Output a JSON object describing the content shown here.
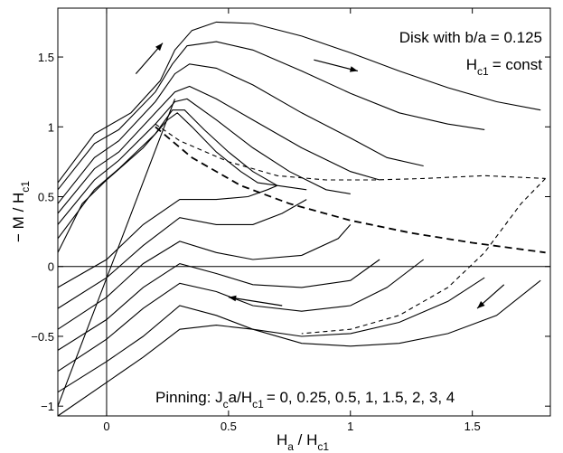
{
  "chart_data": {
    "type": "line",
    "xlim": [
      -0.2,
      1.82
    ],
    "ylim": [
      -1.07,
      1.85
    ],
    "xticks": [
      {
        "value": 0,
        "label": "0"
      },
      {
        "value": 0.5,
        "label": "0.5"
      },
      {
        "value": 1,
        "label": "1"
      },
      {
        "value": 1.5,
        "label": "1.5"
      }
    ],
    "yticks": [
      {
        "value": -1,
        "label": "−1"
      },
      {
        "value": -0.5,
        "label": "−0.5"
      },
      {
        "value": 0,
        "label": "0"
      },
      {
        "value": 0.5,
        "label": "0.5"
      },
      {
        "value": 1,
        "label": "1"
      },
      {
        "value": 1.5,
        "label": "1.5"
      }
    ],
    "xlabel": {
      "main": "H",
      "sub1": "a",
      "mid": " / H",
      "sub2": "c1"
    },
    "ylabel": {
      "main": "− M / H",
      "sub": "c1"
    },
    "annotations": {
      "disk": "Disk with b/a = 0.125",
      "hc1_main": "H",
      "hc1_sub": "c1",
      "hc1_rest": "= const",
      "pinning_prefix": "Pinning:  J",
      "pinning_sub1": "c",
      "pinning_mid": "a/H",
      "pinning_sub2": "c1",
      "pinning_values": "= 0, 0.25, 0.5, 1, 1.5, 2, 3, 4"
    },
    "series": [
      {
        "jc": 4,
        "descending": [
          [
            1.78,
            1.12
          ],
          [
            1.6,
            1.18
          ],
          [
            1.4,
            1.28
          ],
          [
            1.2,
            1.4
          ],
          [
            1.0,
            1.53
          ],
          [
            0.8,
            1.65
          ],
          [
            0.6,
            1.74
          ],
          [
            0.45,
            1.75
          ],
          [
            0.35,
            1.69
          ],
          [
            0.28,
            1.55
          ],
          [
            0.22,
            1.33
          ],
          [
            0.1,
            1.1
          ],
          [
            -0.05,
            0.95
          ],
          [
            -0.2,
            0.6
          ]
        ],
        "ascending": [
          [
            -0.2,
            -1.07
          ],
          [
            0.0,
            -0.83
          ],
          [
            0.15,
            -0.65
          ],
          [
            0.3,
            -0.45
          ],
          [
            0.45,
            -0.42
          ],
          [
            0.6,
            -0.45
          ],
          [
            0.8,
            -0.55
          ],
          [
            1.0,
            -0.57
          ],
          [
            1.2,
            -0.55
          ],
          [
            1.4,
            -0.48
          ],
          [
            1.6,
            -0.35
          ],
          [
            1.78,
            -0.1
          ]
        ]
      },
      {
        "jc": 3,
        "descending": [
          [
            1.55,
            0.98
          ],
          [
            1.4,
            1.02
          ],
          [
            1.2,
            1.1
          ],
          [
            1.0,
            1.24
          ],
          [
            0.8,
            1.4
          ],
          [
            0.6,
            1.55
          ],
          [
            0.45,
            1.61
          ],
          [
            0.33,
            1.58
          ],
          [
            0.27,
            1.45
          ],
          [
            0.2,
            1.25
          ],
          [
            0.05,
            0.98
          ],
          [
            -0.05,
            0.88
          ],
          [
            -0.2,
            0.55
          ]
        ],
        "ascending": [
          [
            -0.2,
            -0.9
          ],
          [
            0.0,
            -0.68
          ],
          [
            0.15,
            -0.5
          ],
          [
            0.3,
            -0.28
          ],
          [
            0.45,
            -0.35
          ],
          [
            0.6,
            -0.45
          ],
          [
            0.8,
            -0.5
          ],
          [
            1.0,
            -0.48
          ],
          [
            1.2,
            -0.4
          ],
          [
            1.4,
            -0.25
          ],
          [
            1.55,
            -0.08
          ]
        ]
      },
      {
        "jc": 2,
        "descending": [
          [
            1.3,
            0.72
          ],
          [
            1.15,
            0.78
          ],
          [
            1.0,
            0.92
          ],
          [
            0.8,
            1.1
          ],
          [
            0.6,
            1.3
          ],
          [
            0.45,
            1.42
          ],
          [
            0.34,
            1.45
          ],
          [
            0.28,
            1.38
          ],
          [
            0.2,
            1.18
          ],
          [
            0.05,
            0.9
          ],
          [
            -0.05,
            0.78
          ],
          [
            -0.2,
            0.45
          ]
        ],
        "ascending": [
          [
            -0.2,
            -0.75
          ],
          [
            0.0,
            -0.52
          ],
          [
            0.15,
            -0.3
          ],
          [
            0.3,
            -0.12
          ],
          [
            0.45,
            -0.18
          ],
          [
            0.6,
            -0.28
          ],
          [
            0.8,
            -0.32
          ],
          [
            1.0,
            -0.28
          ],
          [
            1.15,
            -0.15
          ],
          [
            1.3,
            0.05
          ]
        ]
      },
      {
        "jc": 1.5,
        "descending": [
          [
            1.12,
            0.62
          ],
          [
            1.0,
            0.68
          ],
          [
            0.8,
            0.85
          ],
          [
            0.6,
            1.05
          ],
          [
            0.45,
            1.2
          ],
          [
            0.34,
            1.29
          ],
          [
            0.28,
            1.25
          ],
          [
            0.2,
            1.1
          ],
          [
            0.05,
            0.82
          ],
          [
            -0.05,
            0.7
          ],
          [
            -0.2,
            0.38
          ]
        ],
        "ascending": [
          [
            -0.2,
            -0.6
          ],
          [
            0.0,
            -0.38
          ],
          [
            0.15,
            -0.15
          ],
          [
            0.3,
            0.02
          ],
          [
            0.45,
            -0.05
          ],
          [
            0.6,
            -0.13
          ],
          [
            0.8,
            -0.15
          ],
          [
            1.0,
            -0.1
          ],
          [
            1.12,
            0.05
          ]
        ]
      },
      {
        "jc": 1,
        "descending": [
          [
            1.0,
            0.52
          ],
          [
            0.9,
            0.55
          ],
          [
            0.75,
            0.68
          ],
          [
            0.6,
            0.85
          ],
          [
            0.45,
            1.05
          ],
          [
            0.33,
            1.2
          ],
          [
            0.28,
            1.18
          ],
          [
            0.2,
            1.02
          ],
          [
            0.05,
            0.76
          ],
          [
            -0.05,
            0.62
          ],
          [
            -0.2,
            0.3
          ]
        ],
        "ascending": [
          [
            -0.2,
            -0.45
          ],
          [
            0.0,
            -0.22
          ],
          [
            0.15,
            0.02
          ],
          [
            0.3,
            0.18
          ],
          [
            0.45,
            0.1
          ],
          [
            0.6,
            0.05
          ],
          [
            0.8,
            0.08
          ],
          [
            0.95,
            0.2
          ],
          [
            1.0,
            0.3
          ]
        ]
      },
      {
        "jc": 0.5,
        "descending": [
          [
            0.82,
            0.55
          ],
          [
            0.7,
            0.58
          ],
          [
            0.6,
            0.68
          ],
          [
            0.5,
            0.82
          ],
          [
            0.4,
            0.98
          ],
          [
            0.32,
            1.12
          ],
          [
            0.27,
            1.12
          ],
          [
            0.2,
            0.95
          ],
          [
            0.05,
            0.7
          ],
          [
            -0.05,
            0.55
          ],
          [
            -0.2,
            0.2
          ]
        ],
        "ascending": [
          [
            -0.2,
            -0.3
          ],
          [
            0.0,
            -0.08
          ],
          [
            0.15,
            0.15
          ],
          [
            0.3,
            0.35
          ],
          [
            0.45,
            0.3
          ],
          [
            0.6,
            0.3
          ],
          [
            0.72,
            0.38
          ],
          [
            0.82,
            0.48
          ]
        ]
      },
      {
        "jc": 0.25,
        "descending": [
          [
            0.7,
            0.58
          ],
          [
            0.62,
            0.6
          ],
          [
            0.55,
            0.68
          ],
          [
            0.45,
            0.82
          ],
          [
            0.35,
            1.0
          ],
          [
            0.29,
            1.1
          ],
          [
            0.25,
            1.05
          ],
          [
            0.15,
            0.85
          ],
          [
            0.0,
            0.62
          ],
          [
            -0.1,
            0.45
          ],
          [
            -0.2,
            0.1
          ]
        ],
        "ascending": [
          [
            -0.2,
            -0.15
          ],
          [
            0.0,
            0.05
          ],
          [
            0.15,
            0.3
          ],
          [
            0.3,
            0.48
          ],
          [
            0.45,
            0.48
          ],
          [
            0.58,
            0.5
          ],
          [
            0.66,
            0.55
          ],
          [
            0.7,
            0.58
          ]
        ]
      }
    ],
    "virgin_curve": [
      [
        -0.2,
        -1.0
      ],
      [
        0.28,
        1.2
      ]
    ],
    "dashed_upper": [
      [
        0.2,
        1.02
      ],
      [
        0.3,
        0.9
      ],
      [
        0.5,
        0.75
      ],
      [
        0.7,
        0.65
      ],
      [
        0.9,
        0.62
      ],
      [
        1.1,
        0.62
      ],
      [
        1.3,
        0.63
      ],
      [
        1.55,
        0.65
      ],
      [
        1.8,
        0.63
      ]
    ],
    "dashed_lower": [
      [
        0.2,
        1.0
      ],
      [
        0.35,
        0.78
      ],
      [
        0.55,
        0.58
      ],
      [
        0.75,
        0.45
      ],
      [
        1.0,
        0.33
      ],
      [
        1.25,
        0.24
      ],
      [
        1.5,
        0.17
      ],
      [
        1.8,
        0.1
      ]
    ],
    "dashed_return": [
      [
        1.8,
        0.63
      ],
      [
        1.7,
        0.45
      ],
      [
        1.55,
        0.1
      ],
      [
        1.4,
        -0.15
      ],
      [
        1.2,
        -0.35
      ],
      [
        1.0,
        -0.45
      ],
      [
        0.8,
        -0.48
      ]
    ],
    "arrows": [
      {
        "from": [
          0.12,
          1.38
        ],
        "to": [
          0.23,
          1.6
        ]
      },
      {
        "from": [
          0.85,
          1.48
        ],
        "to": [
          1.03,
          1.4
        ]
      },
      {
        "from": [
          1.63,
          -0.13
        ],
        "to": [
          1.52,
          -0.3
        ]
      },
      {
        "from": [
          0.72,
          -0.28
        ],
        "to": [
          0.5,
          -0.22
        ]
      }
    ],
    "colors": {
      "line": "#000000",
      "background": "#ffffff"
    }
  }
}
